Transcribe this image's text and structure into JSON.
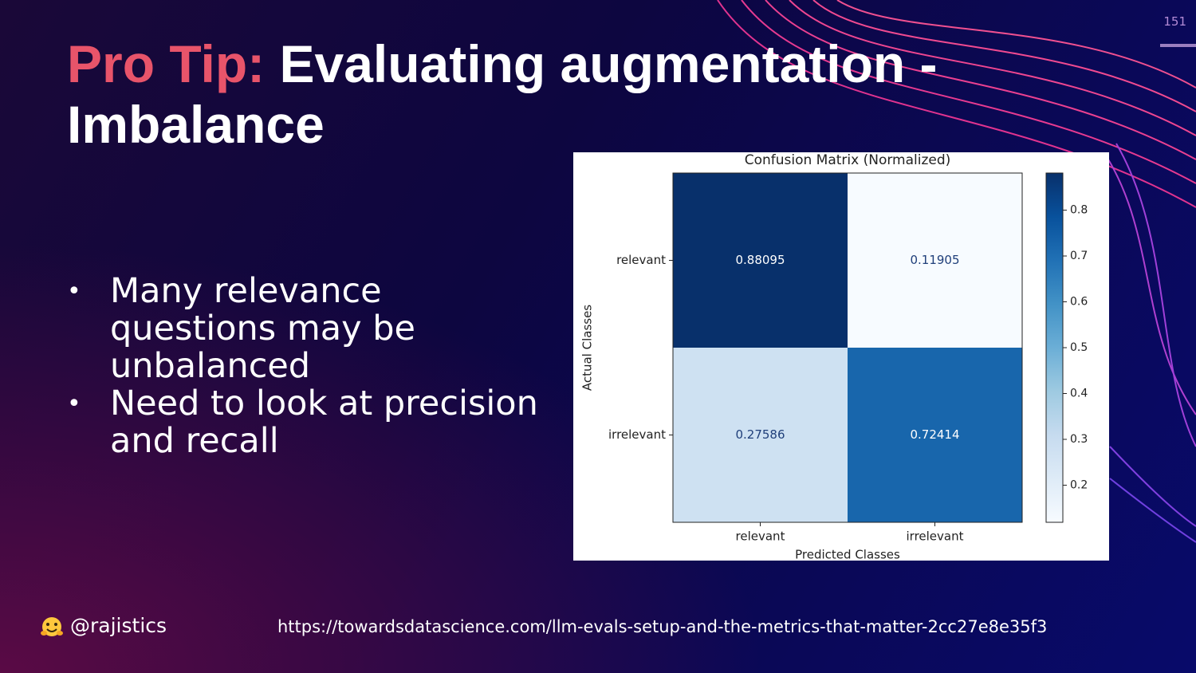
{
  "slide": {
    "page_number": "151",
    "title_highlight": "Pro Tip:",
    "title": "Evaluating augmentation - Imbalance",
    "bullets": [
      "Many relevance questions may be unbalanced",
      "Need to look at precision and recall"
    ],
    "handle": "@rajistics",
    "link": "https://towardsdatascience.com/llm-evals-setup-and-the-metrics-that-matter-2cc27e8e35f3"
  },
  "chart_data": {
    "type": "heatmap",
    "title": "Confusion Matrix (Normalized)",
    "x_label": "Predicted Classes",
    "y_label": "Actual Classes",
    "x_categories": [
      "relevant",
      "irrelevant"
    ],
    "y_categories": [
      "relevant",
      "irrelevant"
    ],
    "values": [
      [
        0.88095,
        0.11905
      ],
      [
        0.27586,
        0.72414
      ]
    ],
    "colormap": "Blues",
    "clim": [
      0.11905,
      0.88095
    ],
    "cticks": [
      0.2,
      0.3,
      0.4,
      0.5,
      0.6,
      0.7,
      0.8
    ]
  }
}
